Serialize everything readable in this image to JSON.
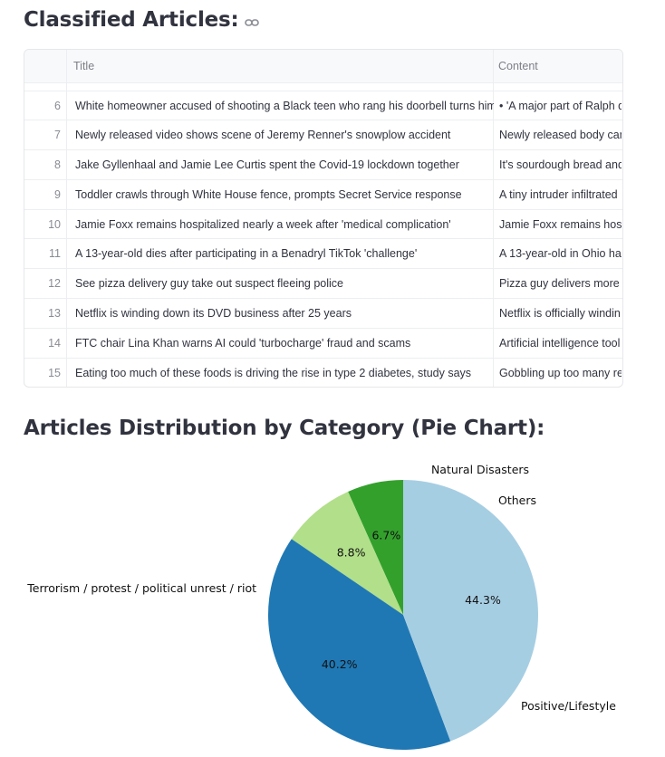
{
  "section1": {
    "title": "Classified Articles:",
    "link_icon": "link-icon"
  },
  "table": {
    "columns": [
      "Title",
      "Content"
    ],
    "rows": [
      {
        "index": "6",
        "title": "White homeowner accused of shooting a Black teen who rang his doorbell turns himself in",
        "content": "• 'A major part of Ralph d"
      },
      {
        "index": "7",
        "title": "Newly released video shows scene of Jeremy Renner's snowplow accident",
        "content": "Newly released body cam"
      },
      {
        "index": "8",
        "title": "Jake Gyllenhaal and Jamie Lee Curtis spent the Covid-19 lockdown together",
        "content": "It's sourdough bread and"
      },
      {
        "index": "9",
        "title": "Toddler crawls through White House fence, prompts Secret Service response",
        "content": "A tiny intruder infiltrated"
      },
      {
        "index": "10",
        "title": "Jamie Foxx remains hospitalized nearly a week after 'medical complication'",
        "content": "Jamie Foxx remains hosp"
      },
      {
        "index": "11",
        "title": "A 13-year-old dies after participating in a Benadryl TikTok 'challenge'",
        "content": "A 13-year-old in Ohio has"
      },
      {
        "index": "12",
        "title": "See pizza delivery guy take out suspect fleeing police",
        "content": "Pizza guy delivers more t"
      },
      {
        "index": "13",
        "title": "Netflix is winding down its DVD business after 25 years",
        "content": "Netflix is officially windin"
      },
      {
        "index": "14",
        "title": "FTC chair Lina Khan warns AI could 'turbocharge' fraud and scams",
        "content": "Artificial intelligence tool"
      },
      {
        "index": "15",
        "title": "Eating too much of these foods is driving the rise in type 2 diabetes, study says",
        "content": "Gobbling up too many re"
      }
    ]
  },
  "section2": {
    "title": "Articles Distribution by Category (Pie Chart):"
  },
  "chart_data": {
    "type": "pie",
    "title": "",
    "slices": [
      {
        "label": "Natural Disasters",
        "value": 6.7,
        "pct_label": "6.7%",
        "color": "#33a02c"
      },
      {
        "label": "Others",
        "value": 8.8,
        "pct_label": "8.8%",
        "color": "#b2df8a"
      },
      {
        "label": "Positive/Lifestyle",
        "value": 40.2,
        "pct_label": "40.2%",
        "color": "#1f78b4"
      },
      {
        "label": "Terrorism / protest / political unrest / riot",
        "value": 44.3,
        "pct_label": "44.3%",
        "color": "#a6cee3"
      }
    ]
  }
}
